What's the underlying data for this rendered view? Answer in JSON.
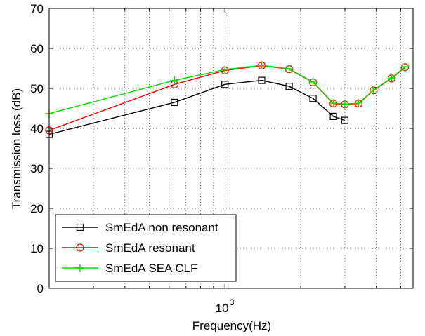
{
  "chart_data": {
    "type": "line",
    "xlabel": "Frequency(Hz)",
    "ylabel": "Transmission loss (dB)",
    "x_scale": "log",
    "xlim": [
      200,
      5600
    ],
    "ylim": [
      0,
      70
    ],
    "grid": true,
    "legend_position": "bottom-left",
    "yticks": [
      "0",
      "10",
      "20",
      "30",
      "40",
      "50",
      "60",
      "70"
    ],
    "xtick": {
      "value": 1000,
      "base": "10",
      "exp": "3"
    },
    "series": [
      {
        "name": "SmEdA non resonant",
        "color": "#000000",
        "marker": "square",
        "x": [
          200,
          630,
          1000,
          1400,
          1800,
          2240,
          2700,
          3000
        ],
        "y": [
          38.5,
          46.5,
          51,
          52,
          50.5,
          47.5,
          43,
          42
        ]
      },
      {
        "name": "SmEdA resonant",
        "color": "#ff0000",
        "marker": "circle",
        "x": [
          200,
          630,
          1000,
          1400,
          1800,
          2240,
          2700,
          3000,
          3400,
          3900,
          4600,
          5200
        ],
        "y": [
          39.5,
          51,
          54.5,
          55.7,
          54.8,
          51.5,
          46.2,
          46,
          46.2,
          49.5,
          52.5,
          55.3
        ]
      },
      {
        "name": "SmEdA SEA CLF",
        "color": "#00e000",
        "marker": "plus",
        "x": [
          200,
          630,
          1000,
          1400,
          1800,
          2240,
          2700,
          3000,
          3400,
          3900,
          4600,
          5200
        ],
        "y": [
          43.7,
          52,
          54.7,
          55.8,
          54.9,
          51.6,
          46.3,
          46.1,
          46.3,
          49.6,
          52.6,
          55.4
        ]
      }
    ]
  }
}
